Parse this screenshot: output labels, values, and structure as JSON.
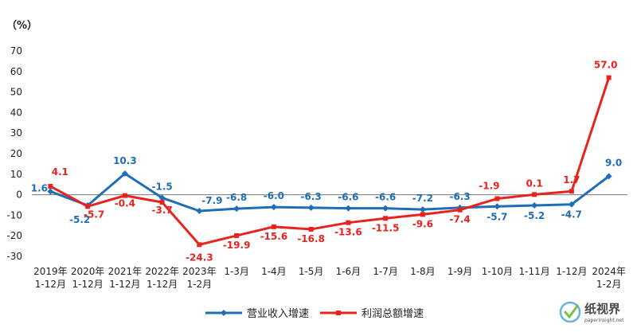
{
  "chart_data": {
    "type": "line",
    "unit_label": "（%）",
    "categories": [
      [
        "2019年",
        "1-12月"
      ],
      [
        "2020年",
        "1-12月"
      ],
      [
        "2021年",
        "1-12月"
      ],
      [
        "2022年",
        "1-12月"
      ],
      [
        "2023年",
        "1-2月"
      ],
      [
        "1-3月"
      ],
      [
        "1-4月"
      ],
      [
        "1-5月"
      ],
      [
        "1-6月"
      ],
      [
        "1-7月"
      ],
      [
        "1-8月"
      ],
      [
        "1-9月"
      ],
      [
        "1-10月"
      ],
      [
        "1-11月"
      ],
      [
        "1-12月"
      ],
      [
        "2024年",
        "1-2月"
      ]
    ],
    "yticks": [
      "70",
      "60",
      "50",
      "40",
      "30",
      "20",
      "10",
      "0",
      "-10",
      "-20",
      "-30"
    ],
    "ylim": [
      -30,
      70
    ],
    "series": [
      {
        "name": "营业收入增速",
        "color": "#1f6db5",
        "marker": "diamond",
        "values": [
          1.6,
          -5.2,
          10.3,
          -1.5,
          -7.9,
          -6.8,
          -6.0,
          -6.3,
          -6.6,
          -6.6,
          -7.2,
          -6.3,
          -5.7,
          -5.2,
          -4.7,
          9.0
        ],
        "labels": [
          "1.6",
          "-5.2",
          "10.3",
          "-1.5",
          "-7.9",
          "-6.8",
          "-6.0",
          "-6.3",
          "-6.6",
          "-6.6",
          "-7.2",
          "-6.3",
          "-5.7",
          "-5.2",
          "-4.7",
          "9.0"
        ]
      },
      {
        "name": "利润总额增速",
        "color": "#e8231e",
        "marker": "square",
        "values": [
          4.1,
          -5.7,
          -0.4,
          -3.7,
          -24.3,
          -19.9,
          -15.6,
          -16.8,
          -13.6,
          -11.5,
          -9.6,
          -7.4,
          -1.9,
          0.1,
          1.7,
          57.0
        ],
        "labels": [
          "4.1",
          "-5.7",
          "-0.4",
          "-3.7",
          "-24.3",
          "-19.9",
          "-15.6",
          "-16.8",
          "-13.6",
          "-11.5",
          "-9.6",
          "-7.4",
          "-1.9",
          "0.1",
          "1.7",
          "57.0"
        ]
      }
    ],
    "legend_position": "bottom-center",
    "grid": false
  },
  "watermark": {
    "text": "纸视界",
    "subtext": "paperinsight.net"
  }
}
